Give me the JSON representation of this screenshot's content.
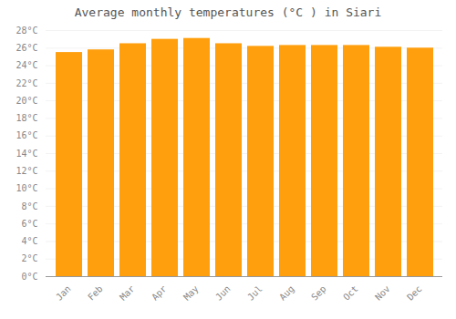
{
  "chart_data": {
    "type": "bar",
    "title": "Average monthly temperatures (°C ) in Siari",
    "categories": [
      "Jan",
      "Feb",
      "Mar",
      "Apr",
      "May",
      "Jun",
      "Jul",
      "Aug",
      "Sep",
      "Oct",
      "Nov",
      "Dec"
    ],
    "values": [
      25.5,
      25.8,
      26.5,
      27.0,
      27.1,
      26.5,
      26.2,
      26.3,
      26.3,
      26.3,
      26.1,
      26.0
    ],
    "color": "#ff9f0d",
    "ylim": [
      0,
      28
    ],
    "yticks": [
      {
        "value": 0,
        "label": "0°C"
      },
      {
        "value": 2,
        "label": "2°C"
      },
      {
        "value": 4,
        "label": "4°C"
      },
      {
        "value": 6,
        "label": "6°C"
      },
      {
        "value": 8,
        "label": "8°C"
      },
      {
        "value": 10,
        "label": "10°C"
      },
      {
        "value": 12,
        "label": "12°C"
      },
      {
        "value": 14,
        "label": "14°C"
      },
      {
        "value": 16,
        "label": "16°C"
      },
      {
        "value": 18,
        "label": "18°C"
      },
      {
        "value": 20,
        "label": "20°C"
      },
      {
        "value": 22,
        "label": "22°C"
      },
      {
        "value": 24,
        "label": "24°C"
      },
      {
        "value": 26,
        "label": "26°C"
      },
      {
        "value": 28,
        "label": "28°C"
      }
    ],
    "grid": true
  }
}
